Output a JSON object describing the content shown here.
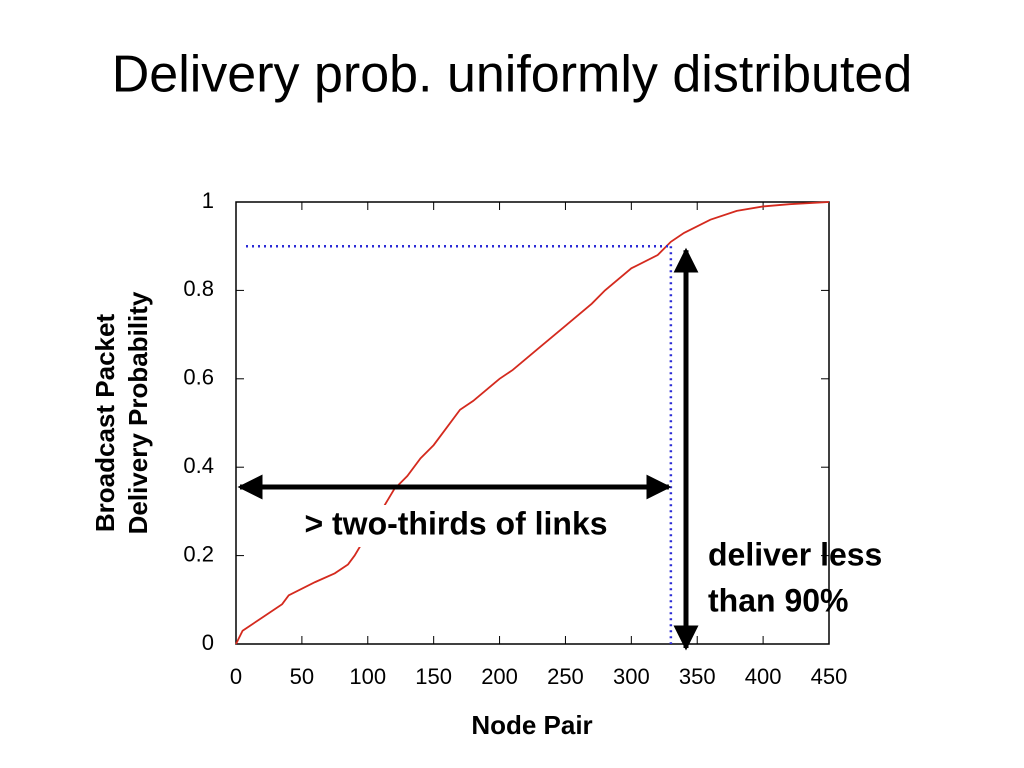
{
  "chart_data": {
    "type": "line",
    "title": "Delivery prob. uniformly distributed",
    "ylabel": [
      "Broadcast Packet",
      "Delivery Probability"
    ],
    "xlabel": "Node Pair",
    "x": [
      0,
      5,
      20,
      35,
      40,
      60,
      75,
      85,
      90,
      120,
      130,
      140,
      150,
      160,
      170,
      180,
      200,
      210,
      230,
      250,
      270,
      280,
      300,
      320,
      330,
      340,
      360,
      380,
      400,
      420,
      450
    ],
    "series": [
      {
        "color": "#d42a1e",
        "values": [
          0,
          0.03,
          0.06,
          0.09,
          0.11,
          0.14,
          0.16,
          0.18,
          0.2,
          0.35,
          0.38,
          0.42,
          0.45,
          0.49,
          0.53,
          0.55,
          0.6,
          0.62,
          0.67,
          0.72,
          0.77,
          0.8,
          0.85,
          0.88,
          0.91,
          0.93,
          0.96,
          0.98,
          0.99,
          0.995,
          1
        ]
      }
    ],
    "xlim": [
      0,
      450
    ],
    "xticks": [
      0,
      50,
      100,
      150,
      200,
      250,
      300,
      350,
      400,
      450
    ],
    "ylim": [
      0,
      1
    ],
    "yticks": [
      0,
      0.2,
      0.4,
      0.6,
      0.8,
      1
    ],
    "threshold": {
      "x": 330,
      "y": 0.9,
      "color": "#2b2bd6"
    },
    "annotations": [
      "> two-thirds of links",
      "deliver less",
      "than 90%"
    ]
  }
}
